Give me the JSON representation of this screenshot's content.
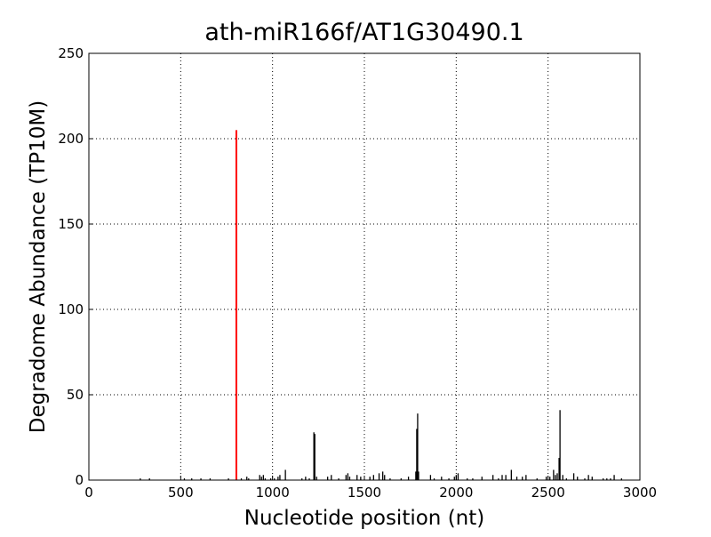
{
  "chart_data": {
    "type": "stem",
    "title": "ath-miR166f/AT1G30490.1",
    "x_label": "Nucleotide position (nt)",
    "y_label": "Degradome Abundance (TP10M)",
    "xlim": [
      0,
      3000
    ],
    "xticks": [
      0,
      500,
      1000,
      1500,
      2000,
      2500,
      3000
    ],
    "ylim": [
      0,
      250
    ],
    "yticks": [
      0,
      50,
      100,
      150,
      200,
      250
    ],
    "grid": true,
    "series": [
      {
        "color": "#000000",
        "x": [
          280,
          330,
          520,
          560,
          610,
          660,
          760,
          830,
          860,
          870,
          930,
          940,
          950,
          960,
          990,
          1010,
          1030,
          1040,
          1070,
          1160,
          1180,
          1200,
          1225,
          1230,
          1240,
          1300,
          1320,
          1360,
          1400,
          1410,
          1420,
          1460,
          1480,
          1530,
          1550,
          1580,
          1600,
          1610,
          1640,
          1700,
          1740,
          1780,
          1785,
          1790,
          1795,
          1860,
          1880,
          1920,
          1960,
          1990,
          2000,
          2010,
          2060,
          2090,
          2140,
          2200,
          2230,
          2250,
          2270,
          2300,
          2330,
          2360,
          2380,
          2440,
          2490,
          2510,
          2530,
          2540,
          2550,
          2560,
          2565,
          2580,
          2600,
          2640,
          2660,
          2700,
          2720,
          2740,
          2800,
          2820,
          2840,
          2860,
          2900
        ],
        "values": [
          1,
          1,
          1,
          1,
          1,
          1,
          1,
          1,
          2,
          1,
          3,
          2,
          3,
          1,
          1,
          1,
          2,
          3,
          6,
          1,
          2,
          1,
          28,
          27,
          2,
          2,
          3,
          1,
          3,
          4,
          2,
          3,
          2,
          2,
          3,
          4,
          5,
          3,
          1,
          1,
          2,
          5,
          30,
          39,
          5,
          3,
          1,
          2,
          1,
          2,
          3,
          4,
          1,
          1,
          2,
          3,
          1,
          3,
          3,
          6,
          2,
          2,
          3,
          1,
          2,
          2,
          6,
          3,
          4,
          13,
          41,
          3,
          1,
          4,
          2,
          1,
          3,
          2,
          1,
          1,
          1,
          3,
          1
        ]
      },
      {
        "color": "#ff0000",
        "x": [
          803
        ],
        "values": [
          205
        ]
      }
    ]
  }
}
